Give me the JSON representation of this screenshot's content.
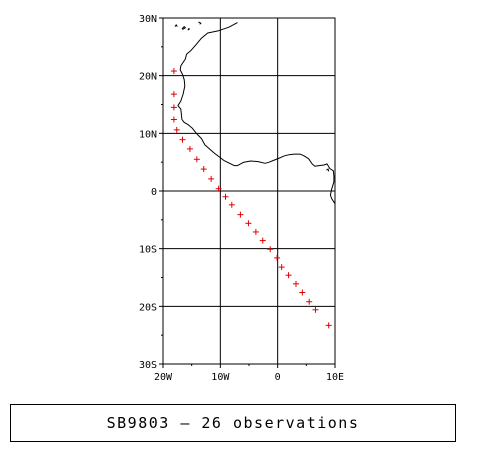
{
  "caption": "SB9803 – 26 observations",
  "map": {
    "projection": "lat-lon",
    "lon_range": [
      -20,
      10
    ],
    "lat_range": [
      -30,
      30
    ],
    "grid": true,
    "grid_step_degrees": 10,
    "lat_ticks": [
      {
        "value": 30,
        "label": "30N"
      },
      {
        "value": 20,
        "label": "20N"
      },
      {
        "value": 10,
        "label": "10N"
      },
      {
        "value": 0,
        "label": "0"
      },
      {
        "value": -10,
        "label": "10S"
      },
      {
        "value": -20,
        "label": "20S"
      },
      {
        "value": -30,
        "label": "30S"
      }
    ],
    "lon_ticks": [
      {
        "value": -20,
        "label": "20W"
      },
      {
        "value": -10,
        "label": "10W"
      },
      {
        "value": 0,
        "label": "0"
      },
      {
        "value": 10,
        "label": "10E"
      }
    ],
    "marker_symbol": "+",
    "marker_color": "#e00000",
    "coastline_color": "#000000",
    "observations": [
      {
        "lon": -18.1,
        "lat": 20.8
      },
      {
        "lon": -18.1,
        "lat": 16.8
      },
      {
        "lon": -18.1,
        "lat": 14.5
      },
      {
        "lon": -18.1,
        "lat": 12.4
      },
      {
        "lon": -17.6,
        "lat": 10.6
      },
      {
        "lon": -16.6,
        "lat": 8.9
      },
      {
        "lon": -15.3,
        "lat": 7.3
      },
      {
        "lon": -14.1,
        "lat": 5.5
      },
      {
        "lon": -12.9,
        "lat": 3.8
      },
      {
        "lon": -11.6,
        "lat": 2.1
      },
      {
        "lon": -10.3,
        "lat": 0.4
      },
      {
        "lon": -9.1,
        "lat": -1.0
      },
      {
        "lon": -8.0,
        "lat": -2.4
      },
      {
        "lon": -6.5,
        "lat": -4.1
      },
      {
        "lon": -5.1,
        "lat": -5.6
      },
      {
        "lon": -3.8,
        "lat": -7.1
      },
      {
        "lon": -2.6,
        "lat": -8.6
      },
      {
        "lon": -1.3,
        "lat": -10.1
      },
      {
        "lon": -0.1,
        "lat": -11.6
      },
      {
        "lon": 0.7,
        "lat": -13.2
      },
      {
        "lon": 1.9,
        "lat": -14.6
      },
      {
        "lon": 3.2,
        "lat": -16.1
      },
      {
        "lon": 4.3,
        "lat": -17.6
      },
      {
        "lon": 5.5,
        "lat": -19.2
      },
      {
        "lon": 6.6,
        "lat": -20.6
      },
      {
        "lon": 8.9,
        "lat": -23.3
      }
    ],
    "coastline_africa": [
      [
        -7.0,
        29.2
      ],
      [
        -8.5,
        28.4
      ],
      [
        -10.3,
        27.8
      ],
      [
        -12.2,
        27.4
      ],
      [
        -13.3,
        26.5
      ],
      [
        -14.3,
        25.3
      ],
      [
        -15.2,
        24.3
      ],
      [
        -15.9,
        23.7
      ],
      [
        -16.1,
        22.9
      ],
      [
        -16.9,
        21.7
      ],
      [
        -17.0,
        21.0
      ],
      [
        -16.6,
        20.2
      ],
      [
        -16.3,
        19.3
      ],
      [
        -16.2,
        18.2
      ],
      [
        -16.5,
        16.8
      ],
      [
        -16.9,
        15.6
      ],
      [
        -17.4,
        14.8
      ],
      [
        -16.9,
        14.2
      ],
      [
        -16.8,
        13.4
      ],
      [
        -16.7,
        12.4
      ],
      [
        -16.3,
        11.9
      ],
      [
        -15.6,
        11.5
      ],
      [
        -14.9,
        10.9
      ],
      [
        -14.1,
        9.9
      ],
      [
        -13.3,
        9.1
      ],
      [
        -12.7,
        8.0
      ],
      [
        -11.9,
        7.3
      ],
      [
        -11.1,
        6.6
      ],
      [
        -10.3,
        6.0
      ],
      [
        -9.4,
        5.3
      ],
      [
        -8.6,
        4.9
      ],
      [
        -7.6,
        4.4
      ],
      [
        -7.0,
        4.4
      ],
      [
        -5.9,
        5.0
      ],
      [
        -4.7,
        5.2
      ],
      [
        -3.4,
        5.1
      ],
      [
        -2.2,
        4.8
      ],
      [
        -1.5,
        5.0
      ],
      [
        -0.5,
        5.4
      ],
      [
        0.5,
        5.8
      ],
      [
        1.2,
        6.1
      ],
      [
        2.0,
        6.3
      ],
      [
        2.9,
        6.4
      ],
      [
        3.9,
        6.4
      ],
      [
        4.6,
        6.1
      ],
      [
        5.4,
        5.6
      ],
      [
        6.0,
        4.7
      ],
      [
        6.5,
        4.3
      ],
      [
        7.2,
        4.4
      ],
      [
        8.1,
        4.5
      ],
      [
        8.6,
        4.7
      ],
      [
        9.1,
        3.9
      ],
      [
        9.7,
        3.5
      ],
      [
        9.8,
        2.6
      ],
      [
        9.8,
        1.6
      ],
      [
        9.6,
        0.9
      ],
      [
        9.4,
        0.3
      ],
      [
        9.2,
        -0.7
      ],
      [
        9.4,
        -1.3
      ],
      [
        10.0,
        -2.2
      ]
    ],
    "coastline_islands": [
      [
        [
          -17.9,
          28.5
        ],
        [
          -17.7,
          28.8
        ],
        [
          -17.5,
          28.5
        ]
      ],
      [
        [
          -16.7,
          28.1
        ],
        [
          -16.3,
          28.5
        ],
        [
          -16.1,
          28.3
        ],
        [
          -16.6,
          28.0
        ]
      ],
      [
        [
          -15.7,
          27.9
        ],
        [
          -15.4,
          28.1
        ],
        [
          -15.6,
          28.2
        ]
      ],
      [
        [
          -13.6,
          28.9
        ],
        [
          -13.4,
          29.1
        ],
        [
          -13.8,
          29.3
        ]
      ],
      [
        [
          8.5,
          3.6
        ],
        [
          8.8,
          3.8
        ],
        [
          8.9,
          3.4
        ]
      ]
    ]
  }
}
